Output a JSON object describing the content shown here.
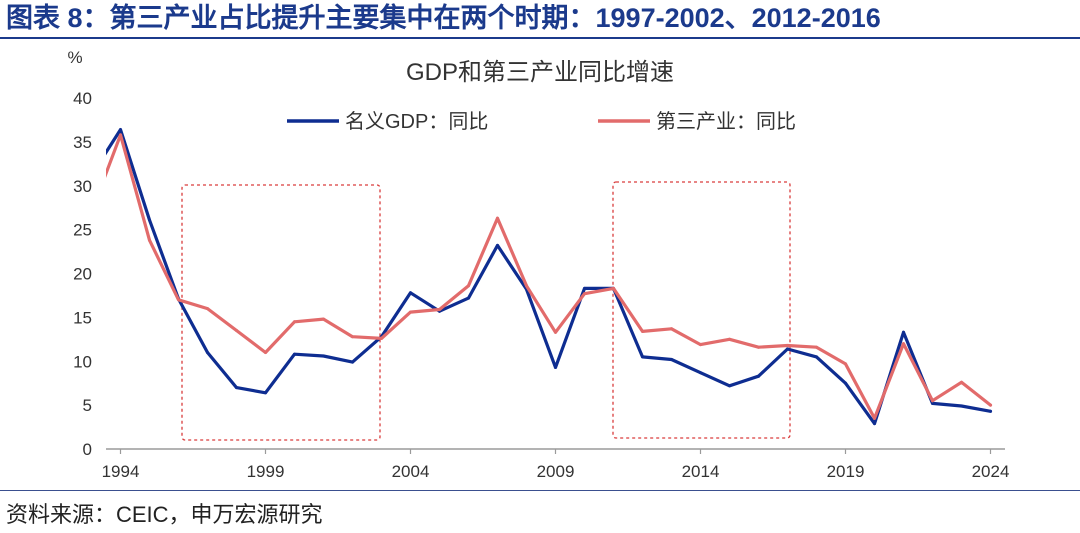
{
  "header": {
    "title": "图表 8：第三产业占比提升主要集中在两个时期：1997-2002、2012-2016"
  },
  "colors": {
    "title": "#1b3a8c",
    "highlight_box": "#d93c3c"
  },
  "chart_data": {
    "type": "line",
    "title": "GDP和第三产业同比增速",
    "xlabel": "",
    "ylabel": "%",
    "xlim": [
      1993.5,
      2024.5
    ],
    "ylim": [
      0,
      40
    ],
    "y_ticks": [
      0,
      5,
      10,
      15,
      20,
      25,
      30,
      35,
      40
    ],
    "x_tick_labels": [
      "1994",
      "1999",
      "2004",
      "2009",
      "2014",
      "2019",
      "2024"
    ],
    "grid": false,
    "legend_position": "top-center",
    "x": [
      1993,
      1994,
      1995,
      1996,
      1997,
      1998,
      1999,
      2000,
      2001,
      2002,
      2003,
      2004,
      2005,
      2006,
      2007,
      2008,
      2009,
      2010,
      2011,
      2012,
      2013,
      2014,
      2015,
      2016,
      2017,
      2018,
      2019,
      2020,
      2021,
      2022,
      2023,
      2024
    ],
    "series": [
      {
        "name": "名义GDP：同比",
        "color": "#0e2d91",
        "values": [
          31.2,
          36.4,
          26.1,
          17.1,
          11.0,
          7.0,
          6.4,
          10.8,
          10.6,
          9.9,
          12.8,
          17.8,
          15.7,
          17.2,
          23.2,
          18.2,
          9.3,
          18.3,
          18.3,
          10.5,
          10.2,
          8.7,
          7.2,
          8.3,
          11.4,
          10.5,
          7.5,
          2.9,
          13.3,
          5.2,
          4.9,
          4.3
        ]
      },
      {
        "name": "第三产业：同比",
        "color": "#e26b6b",
        "values": [
          27.0,
          35.8,
          23.8,
          17.0,
          16.0,
          13.5,
          11.0,
          14.5,
          14.8,
          12.8,
          12.6,
          15.6,
          15.9,
          18.6,
          26.3,
          18.6,
          13.3,
          17.7,
          18.3,
          13.4,
          13.7,
          11.9,
          12.5,
          11.6,
          11.8,
          11.6,
          9.7,
          3.5,
          12.0,
          5.5,
          7.6,
          5.0
        ]
      }
    ]
  },
  "footer": {
    "source": "资料来源：CEIC，申万宏源研究"
  }
}
